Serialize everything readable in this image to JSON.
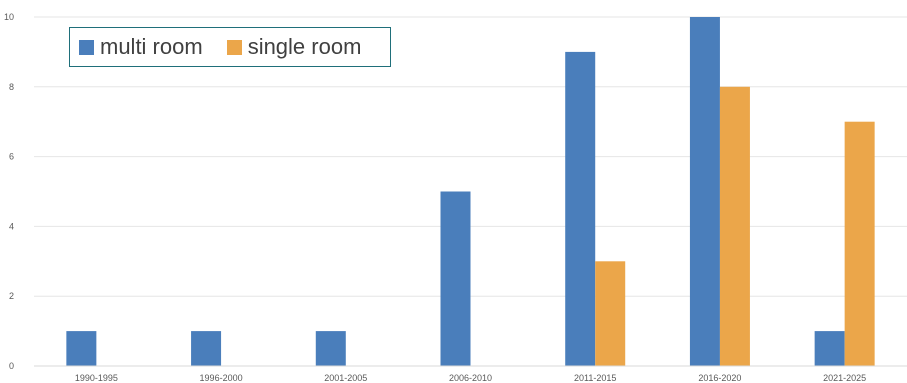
{
  "chart_data": {
    "type": "bar",
    "categories": [
      "1990-1995",
      "1996-2000",
      "2001-2005",
      "2006-2010",
      "2011-2015",
      "2016-2020",
      "2021-2025"
    ],
    "series": [
      {
        "name": "multi room",
        "color": "#4a7ebb",
        "values": [
          1,
          1,
          1,
          5,
          9,
          10,
          1
        ]
      },
      {
        "name": "single room",
        "color": "#eba64a",
        "values": [
          0,
          0,
          0,
          0,
          3,
          8,
          7
        ]
      }
    ],
    "ylim": [
      0,
      10
    ],
    "yticks": [
      0,
      2,
      4,
      6,
      8,
      10
    ],
    "grid": true,
    "legend_position": "top-left",
    "title": "",
    "xlabel": "",
    "ylabel": ""
  }
}
